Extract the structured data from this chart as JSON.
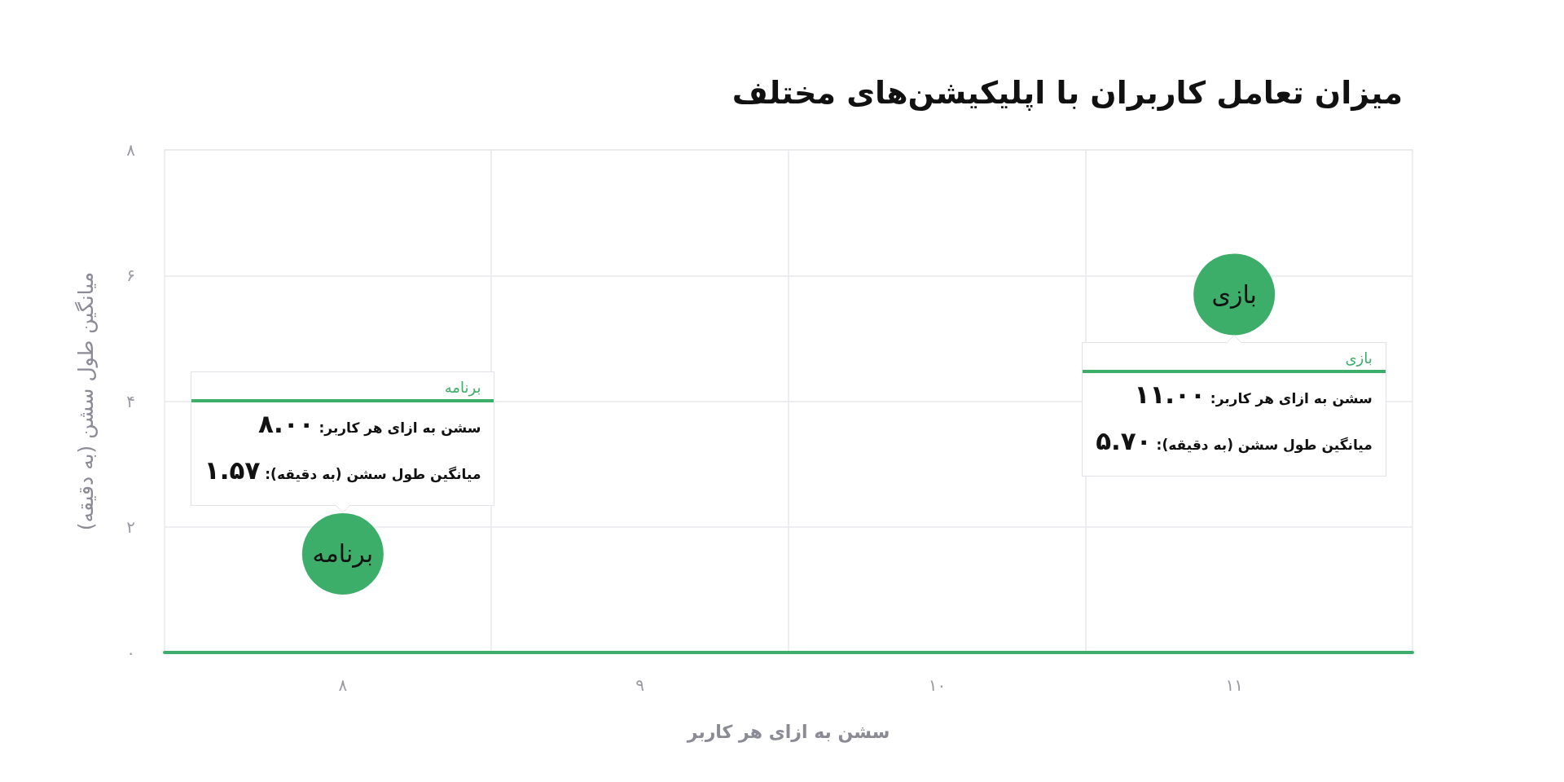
{
  "chart_data": {
    "type": "scatter",
    "title": "میزان تعامل کاربران با اپلیکیشن‌های مختلف",
    "xlabel": "سشن به ازای هر کاربر",
    "ylabel": "میانگین طول سشن (به دقیقه)",
    "series": [
      {
        "name": "برنامه",
        "color": "#3dae6a",
        "x": [
          8
        ],
        "values": [
          1.57
        ]
      },
      {
        "name": "بازی",
        "color": "#3dae6a",
        "x": [
          11
        ],
        "values": [
          5.7
        ]
      }
    ],
    "xlim": [
      7.4,
      11.6
    ],
    "xticks": [
      {
        "value": 8,
        "label": "۸"
      },
      {
        "value": 8.5,
        "label": null
      },
      {
        "value": 9,
        "label": "۹"
      },
      {
        "value": 9.5,
        "label": null
      },
      {
        "value": 10,
        "label": "۱۰"
      },
      {
        "value": 10.5,
        "label": null
      },
      {
        "value": 11,
        "label": "۱۱"
      }
    ],
    "ylim": [
      0,
      8
    ],
    "yticks": [
      {
        "value": 0,
        "label": "۰"
      },
      {
        "value": 2,
        "label": "۲"
      },
      {
        "value": 4,
        "label": "۴"
      },
      {
        "value": 6,
        "label": "۶"
      },
      {
        "value": 8,
        "label": "۸"
      }
    ],
    "grid": true,
    "marker": "circle",
    "annotations": [
      "برنامه",
      "سشن به ازای هر کاربر: ۸.۰۰",
      "میانگین طول سشن (به دقیقه): ۱.۵۷",
      "بازی",
      "سشن به ازای هر کاربر: ۱۱.۰۰",
      "میانگین طول سشن (به دقیقه): ۵.۷۰"
    ]
  }
}
